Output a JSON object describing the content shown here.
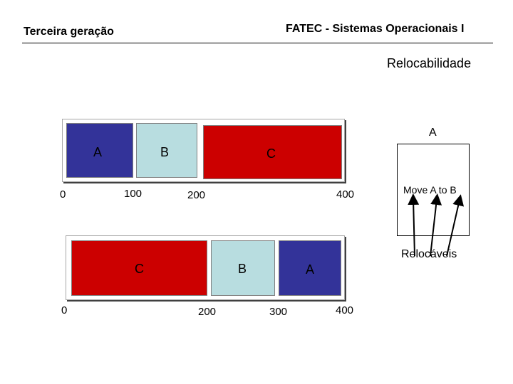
{
  "header": {
    "left_title": "Terceira geração",
    "right_title": "FATEC - Sistemas Operacionais I"
  },
  "subtitle": "Relocabilidade",
  "top_memory": {
    "segments": [
      "A",
      "B",
      "C"
    ],
    "ticks": [
      "0",
      "100",
      "200",
      "400"
    ]
  },
  "bottom_memory": {
    "segments": [
      "C",
      "B",
      "A"
    ],
    "ticks": [
      "0",
      "200",
      "300",
      "400"
    ]
  },
  "side_panel": {
    "top_label": "A",
    "move_label": "Move A to B",
    "relocatable_label": "Relocáveis"
  },
  "colors": {
    "segment_a": "#333399",
    "segment_b": "#b8dde0",
    "segment_c": "#cc0000"
  }
}
